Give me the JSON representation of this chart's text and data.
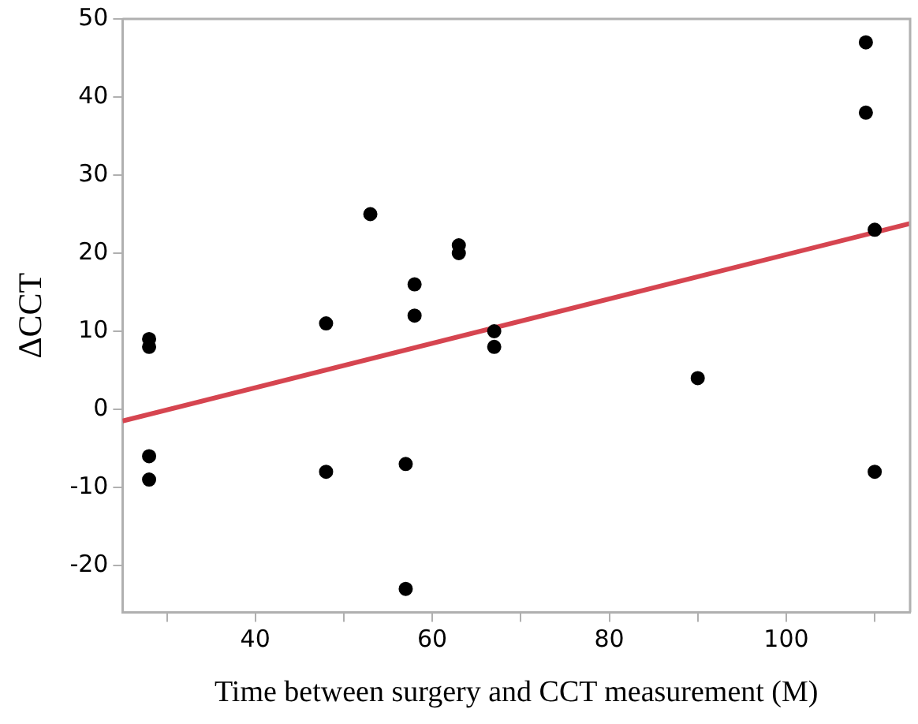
{
  "chart_data": {
    "type": "scatter",
    "xlabel": "Time between surgery and CCT measurement (M)",
    "ylabel": "ΔCCT",
    "xlim": [
      25,
      114
    ],
    "ylim": [
      -26,
      50
    ],
    "xticks": [
      {
        "value": 30,
        "label": null
      },
      40,
      {
        "value": 50,
        "label": null
      },
      60,
      {
        "value": 70,
        "label": null
      },
      80,
      {
        "value": 90,
        "label": null
      },
      100,
      {
        "value": 110,
        "label": null
      }
    ],
    "yticks": [
      -20,
      -10,
      0,
      10,
      20,
      30,
      40,
      50
    ],
    "grid": false,
    "legend": false,
    "marker": "circle",
    "series": [
      {
        "color": "#000000",
        "x": [
          28,
          28,
          28,
          28,
          48,
          48,
          53,
          57,
          57,
          58,
          58,
          63,
          63,
          67,
          67,
          90,
          109,
          109,
          110,
          110
        ],
        "values": [
          9,
          8,
          -6,
          -9,
          11,
          -8,
          25,
          -7,
          -23,
          16,
          12,
          21,
          20,
          10,
          8,
          4,
          47,
          38,
          23,
          -8
        ]
      },
      {
        "type": "line",
        "color": "#d64550",
        "marker": "none",
        "line_style": "solid",
        "x": [
          25,
          114
        ],
        "values": [
          -1.5,
          23.8
        ]
      }
    ]
  }
}
